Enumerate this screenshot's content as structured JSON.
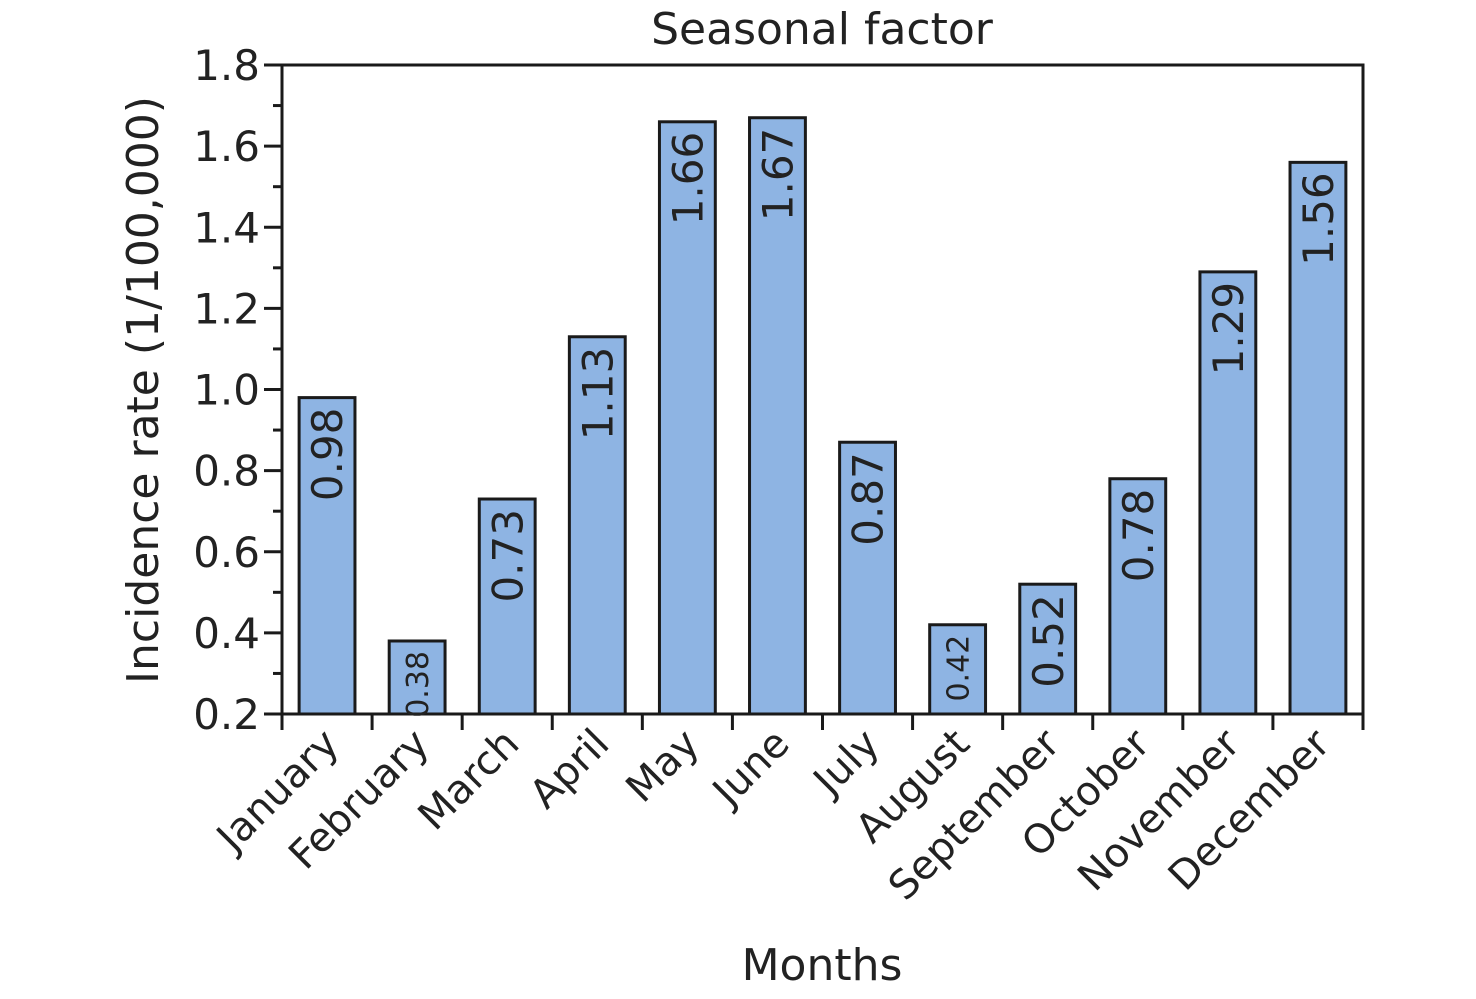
{
  "chart_data": {
    "type": "bar",
    "title": "Seasonal factor",
    "xlabel": "Months",
    "ylabel": "Incidence rate (1/100,000)",
    "categories": [
      "January",
      "February",
      "March",
      "April",
      "May",
      "June",
      "July",
      "August",
      "September",
      "October",
      "November",
      "December"
    ],
    "values": [
      0.98,
      0.38,
      0.73,
      1.13,
      1.66,
      1.67,
      0.87,
      0.42,
      0.52,
      0.78,
      1.29,
      1.56
    ],
    "data_labels": [
      "0.98",
      "0.38",
      "0.73",
      "1.13",
      "1.66",
      "1.67",
      "0.87",
      "0.42",
      "0.52",
      "0.78",
      "1.29",
      "1.56"
    ],
    "ylim": [
      0.2,
      1.8
    ],
    "yticks": [
      0.2,
      0.4,
      0.6,
      0.8,
      1.0,
      1.2,
      1.4,
      1.6,
      1.8
    ],
    "ytick_labels": [
      "0.2",
      "0.4",
      "0.6",
      "0.8",
      "1.0",
      "1.2",
      "1.4",
      "1.6",
      "1.8"
    ],
    "grid": false,
    "legend": "none",
    "bar_color": "#8EB4E3",
    "bar_edge_color": "#1a1a1a"
  }
}
